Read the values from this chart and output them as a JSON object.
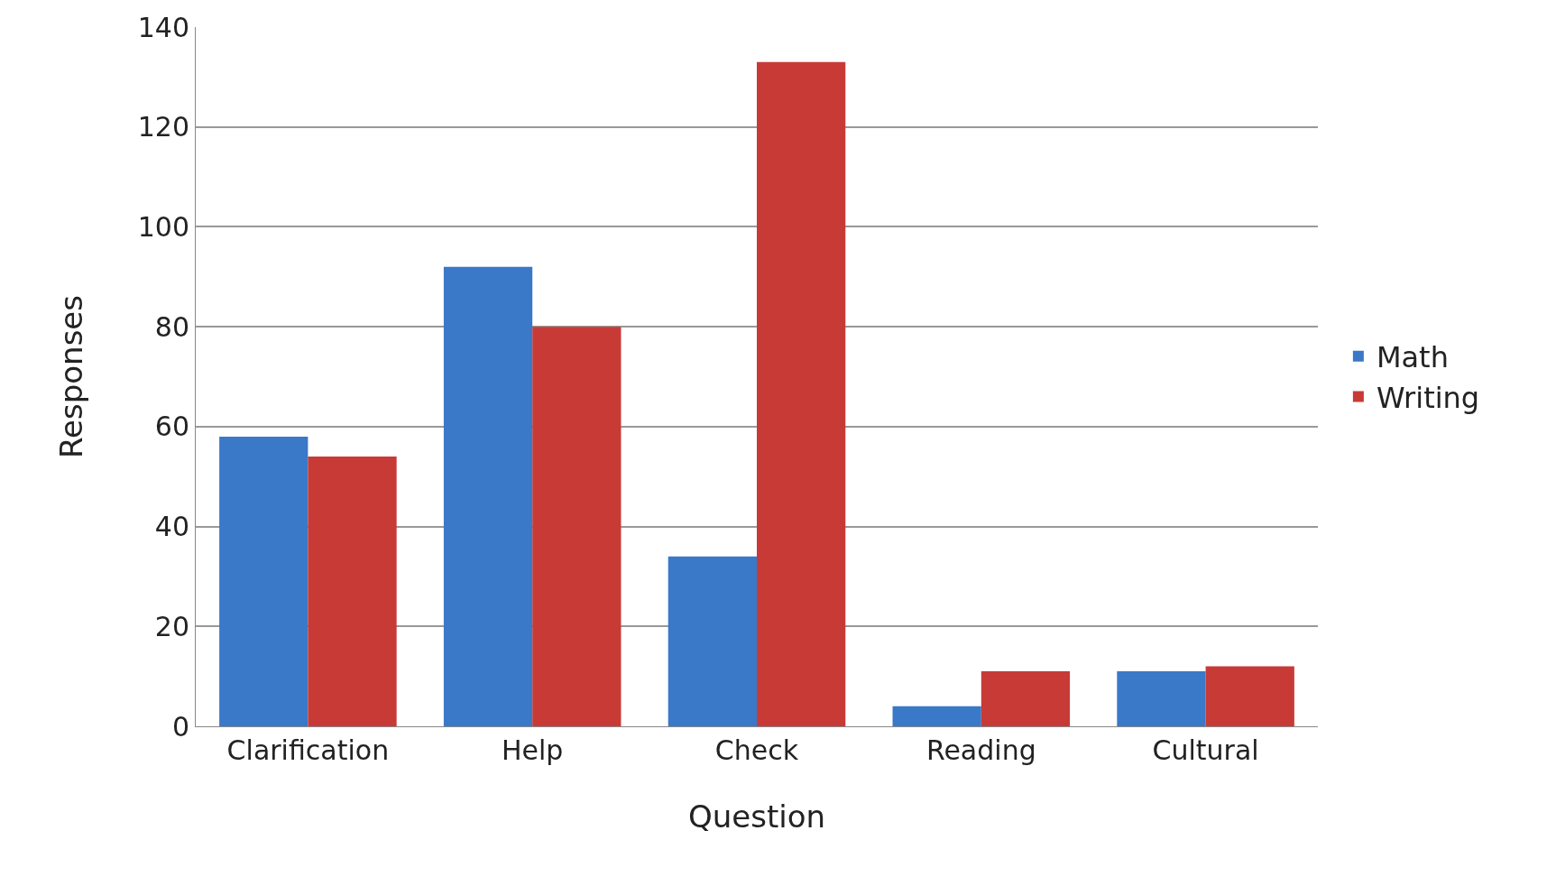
{
  "chart_data": {
    "type": "bar",
    "xlabel": "Question",
    "ylabel": "Responses",
    "categories": [
      "Clarification",
      "Help",
      "Check",
      "Reading",
      "Cultural"
    ],
    "series": [
      {
        "name": "Math",
        "color": "#3a78c8",
        "values": [
          58,
          92,
          34,
          4,
          11
        ]
      },
      {
        "name": "Writing",
        "color": "#c83a36",
        "values": [
          54,
          80,
          133,
          11,
          12
        ]
      }
    ],
    "ylim": [
      0,
      140
    ],
    "yticks": [
      0,
      20,
      40,
      60,
      80,
      100,
      120,
      140
    ],
    "grid": "y",
    "legend": "right"
  }
}
